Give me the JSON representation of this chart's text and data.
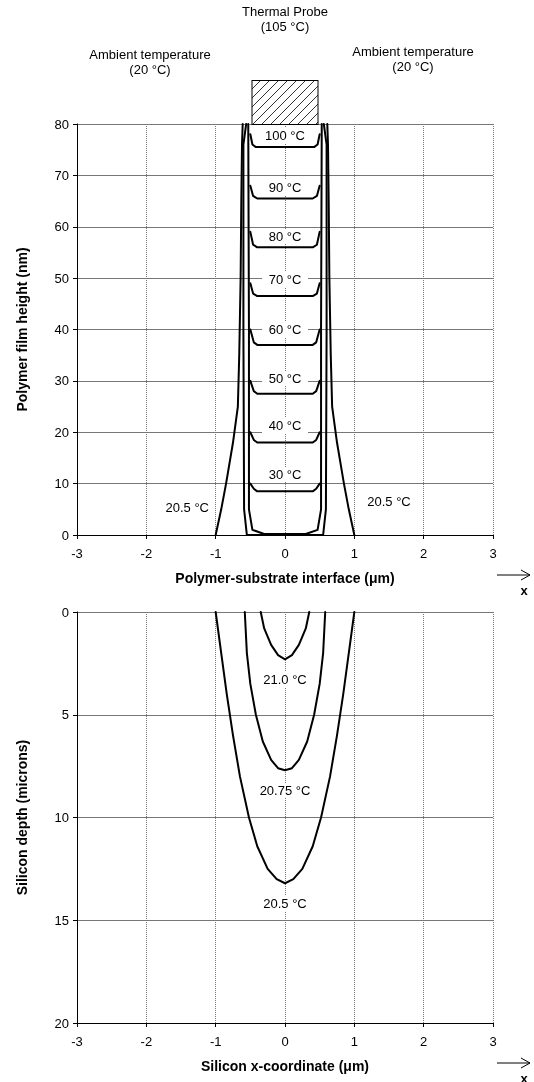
{
  "chart_data": [
    {
      "type": "line",
      "xlabel": "Polymer-substrate interface (μm)",
      "ylabel": "Polymer film height (nm)",
      "xlim": [
        -3,
        3
      ],
      "xticks": [
        -3,
        -2,
        -1,
        0,
        1,
        2,
        3
      ],
      "ylim": [
        0,
        80
      ],
      "yticks": [
        0,
        10,
        20,
        30,
        40,
        50,
        60,
        70,
        80
      ],
      "grid": true,
      "marker": "none",
      "line_style": "solid",
      "annotations": [
        "Ambient temperature (20 °C)",
        "Thermal Probe (105 °C)",
        "Ambient temperature (20 °C)",
        "x",
        "100 °C",
        "90 °C",
        "80 °C",
        "70 °C",
        "60 °C",
        "50 °C",
        "40 °C",
        "30 °C",
        "20.5 °C",
        "20.5 °C"
      ],
      "series": [
        {
          "color": "#000000",
          "x": [
            -0.5,
            -0.47,
            -0.42,
            0.42,
            0.47,
            0.5
          ],
          "values": [
            78,
            76,
            75.5,
            75.5,
            76,
            78
          ]
        },
        {
          "color": "#000000",
          "x": [
            -0.5,
            -0.46,
            -0.4,
            0.4,
            0.46,
            0.5
          ],
          "values": [
            68,
            66,
            65.5,
            65.5,
            66,
            68
          ]
        },
        {
          "color": "#000000",
          "x": [
            -0.5,
            -0.46,
            -0.4,
            0.4,
            0.46,
            0.5
          ],
          "values": [
            59,
            56.5,
            56,
            56,
            56.5,
            59
          ]
        },
        {
          "color": "#000000",
          "x": [
            -0.5,
            -0.46,
            -0.4,
            0.4,
            0.46,
            0.5
          ],
          "values": [
            49,
            47,
            46.5,
            46.5,
            47,
            49
          ]
        },
        {
          "color": "#000000",
          "x": [
            -0.5,
            -0.45,
            -0.4,
            0.4,
            0.45,
            0.5
          ],
          "values": [
            40,
            37.5,
            37,
            37,
            37.5,
            40
          ]
        },
        {
          "color": "#000000",
          "x": [
            -0.5,
            -0.45,
            -0.4,
            0.4,
            0.45,
            0.5
          ],
          "values": [
            30,
            28,
            27.5,
            27.5,
            28,
            30
          ]
        },
        {
          "color": "#000000",
          "x": [
            -0.5,
            -0.45,
            -0.4,
            0.4,
            0.45,
            0.5
          ],
          "values": [
            20,
            18.5,
            18,
            18,
            18.5,
            20
          ]
        },
        {
          "color": "#000000",
          "x": [
            -0.5,
            -0.45,
            -0.4,
            0.4,
            0.45,
            0.5
          ],
          "values": [
            10,
            9,
            8.5,
            8.5,
            9,
            10
          ]
        },
        {
          "color": "#000000",
          "x": [
            -0.53,
            -0.52,
            -0.52,
            -0.47,
            -0.3,
            0.3,
            0.47,
            0.52,
            0.52,
            0.53
          ],
          "values": [
            80,
            40,
            5,
            1,
            0.2,
            0.2,
            1,
            5,
            40,
            80
          ]
        },
        {
          "color": "#000000",
          "x": [
            -0.56,
            -0.6,
            -0.6,
            -0.59,
            -0.55,
            0.55,
            0.59,
            0.6,
            0.6,
            0.56
          ],
          "values": [
            80,
            76,
            40,
            5,
            0,
            0,
            5,
            40,
            76,
            80
          ]
        },
        {
          "color": "#000000",
          "x": [
            -1,
            -0.92,
            -0.85,
            -0.75,
            -0.68,
            -0.66,
            -0.64,
            -0.63,
            -0.62,
            -0.61
          ],
          "values": [
            0,
            5,
            10,
            18,
            25,
            35,
            50,
            65,
            76,
            80
          ]
        },
        {
          "color": "#000000",
          "x": [
            1,
            0.92,
            0.85,
            0.75,
            0.68,
            0.66,
            0.64,
            0.63,
            0.62,
            0.61
          ],
          "values": [
            0,
            5,
            10,
            18,
            25,
            35,
            50,
            65,
            76,
            80
          ]
        }
      ]
    },
    {
      "type": "line",
      "xlabel": "Silicon x-coordinate (μm)",
      "ylabel": "Silicon depth (microns)",
      "xlim": [
        -3,
        3
      ],
      "xticks": [
        -3,
        -2,
        -1,
        0,
        1,
        2,
        3
      ],
      "ylim": [
        20,
        0
      ],
      "yticks": [
        0,
        5,
        10,
        15,
        20
      ],
      "grid": true,
      "marker": "none",
      "line_style": "solid",
      "annotations": [
        "x",
        "21.0 °C",
        "20.75 °C",
        "20.5 °C"
      ],
      "series": [
        {
          "color": "#000000",
          "x": [
            -0.35,
            -0.3,
            -0.2,
            -0.1,
            0,
            0.1,
            0.2,
            0.3,
            0.35
          ],
          "values": [
            0,
            0.8,
            1.6,
            2.1,
            2.3,
            2.1,
            1.6,
            0.8,
            0
          ]
        },
        {
          "color": "#000000",
          "x": [
            -0.58,
            -0.55,
            -0.5,
            -0.42,
            -0.32,
            -0.2,
            -0.1,
            0,
            0.1,
            0.2,
            0.32,
            0.42,
            0.5,
            0.55,
            0.58
          ],
          "values": [
            0,
            2,
            3.5,
            5,
            6.3,
            7.2,
            7.6,
            7.7,
            7.6,
            7.2,
            6.3,
            5,
            3.5,
            2,
            0
          ]
        },
        {
          "color": "#000000",
          "x": [
            -1,
            -0.92,
            -0.84,
            -0.75,
            -0.65,
            -0.52,
            -0.4,
            -0.25,
            -0.12,
            0,
            0.12,
            0.25,
            0.4,
            0.52,
            0.65,
            0.75,
            0.84,
            0.92,
            1
          ],
          "values": [
            0,
            2,
            4,
            6,
            8,
            10,
            11.4,
            12.5,
            13,
            13.2,
            13,
            12.5,
            11.4,
            10,
            8,
            6,
            4,
            2,
            0
          ]
        }
      ]
    }
  ]
}
